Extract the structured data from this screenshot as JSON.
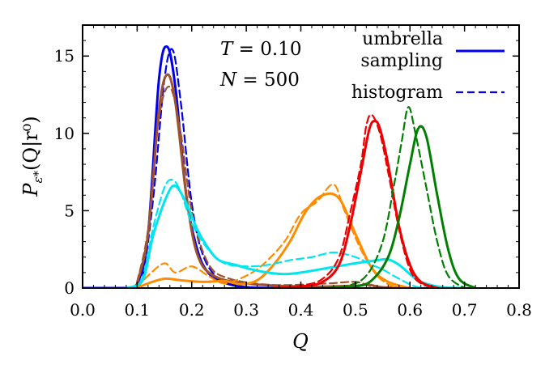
{
  "chart_data": {
    "type": "line",
    "title": "",
    "xlabel": "Q",
    "ylabel": "P_ε*(Q|r⁰)",
    "ylabel_parts": {
      "main": "P",
      "sub": "ε*",
      "arg": "(Q|r⁰)"
    },
    "xlim": [
      0.0,
      0.8
    ],
    "ylim": [
      0,
      17
    ],
    "xticks": [
      "0.0",
      "0.1",
      "0.2",
      "0.3",
      "0.4",
      "0.5",
      "0.6",
      "0.7",
      "0.8"
    ],
    "yticks": [
      "0",
      "5",
      "10",
      "15"
    ],
    "xtick_values": [
      0.0,
      0.1,
      0.2,
      0.3,
      0.4,
      0.5,
      0.6,
      0.7,
      0.8
    ],
    "ytick_values": [
      0,
      5,
      10,
      15
    ],
    "grid": false,
    "annotations": [
      {
        "text": "T = 0.10",
        "math_var": "T",
        "rest": " = 0.10"
      },
      {
        "text": "N = 500",
        "math_var": "N",
        "rest": " = 500"
      }
    ],
    "legend": {
      "placement": "top-right",
      "entries": [
        {
          "label_line1": "umbrella",
          "label_line2": "sampling",
          "style": "solid",
          "color": "#0000ee"
        },
        {
          "label_line1": "histogram",
          "style": "dashed",
          "color": "#0000ee"
        }
      ]
    },
    "series": [
      {
        "name": "blue umbrella sampling",
        "color": "#0000ee",
        "style": "solid",
        "width": 3,
        "points": [
          [
            0,
            0
          ],
          [
            0.08,
            0
          ],
          [
            0.1,
            0.25
          ],
          [
            0.12,
            3.5
          ],
          [
            0.14,
            13.5
          ],
          [
            0.155,
            15.6
          ],
          [
            0.17,
            13
          ],
          [
            0.19,
            6
          ],
          [
            0.21,
            2.5
          ],
          [
            0.23,
            1.0
          ],
          [
            0.26,
            0.35
          ],
          [
            0.3,
            0.05
          ],
          [
            0.35,
            0
          ]
        ]
      },
      {
        "name": "blue histogram",
        "color": "#0000ee",
        "style": "dashed",
        "width": 2.2,
        "points": [
          [
            0,
            0
          ],
          [
            0.09,
            0
          ],
          [
            0.11,
            0.8
          ],
          [
            0.13,
            6
          ],
          [
            0.15,
            13.5
          ],
          [
            0.165,
            15.4
          ],
          [
            0.18,
            12
          ],
          [
            0.2,
            5.5
          ],
          [
            0.22,
            2.2
          ],
          [
            0.25,
            0.6
          ],
          [
            0.3,
            0.05
          ],
          [
            0.35,
            0
          ]
        ]
      },
      {
        "name": "brown umbrella sampling",
        "color": "#a0522d",
        "style": "solid",
        "width": 3,
        "points": [
          [
            0.1,
            0.3
          ],
          [
            0.12,
            3.5
          ],
          [
            0.14,
            11.5
          ],
          [
            0.155,
            13.8
          ],
          [
            0.17,
            12
          ],
          [
            0.19,
            6
          ],
          [
            0.21,
            2.2
          ],
          [
            0.24,
            0.8
          ],
          [
            0.3,
            0.3
          ],
          [
            0.4,
            0.1
          ],
          [
            0.5,
            0.15
          ],
          [
            0.52,
            0.25
          ],
          [
            0.55,
            0.05
          ],
          [
            0.6,
            0
          ]
        ]
      },
      {
        "name": "brown histogram",
        "color": "#a0522d",
        "style": "dashed",
        "width": 2.2,
        "points": [
          [
            0.1,
            0.4
          ],
          [
            0.12,
            3.8
          ],
          [
            0.14,
            11
          ],
          [
            0.16,
            13
          ],
          [
            0.18,
            10
          ],
          [
            0.2,
            5
          ],
          [
            0.23,
            1.6
          ],
          [
            0.27,
            0.6
          ],
          [
            0.35,
            0.2
          ],
          [
            0.45,
            0.3
          ],
          [
            0.5,
            0.4
          ],
          [
            0.53,
            0.1
          ],
          [
            0.56,
            0
          ]
        ]
      },
      {
        "name": "orange umbrella sampling",
        "color": "#ff8c00",
        "style": "solid",
        "width": 3,
        "points": [
          [
            0.1,
            0
          ],
          [
            0.12,
            0.3
          ],
          [
            0.15,
            0.6
          ],
          [
            0.18,
            0.5
          ],
          [
            0.22,
            0.4
          ],
          [
            0.26,
            0.45
          ],
          [
            0.29,
            0.25
          ],
          [
            0.32,
            0.5
          ],
          [
            0.35,
            1.5
          ],
          [
            0.38,
            3
          ],
          [
            0.41,
            5
          ],
          [
            0.44,
            6.0
          ],
          [
            0.47,
            5.8
          ],
          [
            0.5,
            3.5
          ],
          [
            0.53,
            1.3
          ],
          [
            0.56,
            0.4
          ],
          [
            0.6,
            0
          ]
        ]
      },
      {
        "name": "orange histogram",
        "color": "#ff8c00",
        "style": "dashed",
        "width": 2.2,
        "points": [
          [
            0.1,
            0
          ],
          [
            0.12,
            0.8
          ],
          [
            0.15,
            1.6
          ],
          [
            0.17,
            1.0
          ],
          [
            0.2,
            1.4
          ],
          [
            0.23,
            0.8
          ],
          [
            0.26,
            0.3
          ],
          [
            0.3,
            0.8
          ],
          [
            0.33,
            1.5
          ],
          [
            0.37,
            3
          ],
          [
            0.4,
            4.8
          ],
          [
            0.43,
            5.6
          ],
          [
            0.46,
            6.7
          ],
          [
            0.48,
            5
          ],
          [
            0.51,
            2.5
          ],
          [
            0.54,
            0.8
          ],
          [
            0.57,
            0.1
          ],
          [
            0.6,
            0
          ]
        ]
      },
      {
        "name": "cyan umbrella sampling",
        "color": "#00e5ee",
        "style": "solid",
        "width": 3,
        "points": [
          [
            0.08,
            0
          ],
          [
            0.11,
            0.5
          ],
          [
            0.13,
            3.5
          ],
          [
            0.155,
            6.0
          ],
          [
            0.17,
            6.6
          ],
          [
            0.19,
            5.5
          ],
          [
            0.21,
            3.8
          ],
          [
            0.23,
            2.6
          ],
          [
            0.25,
            1.8
          ],
          [
            0.28,
            1.5
          ],
          [
            0.31,
            1.2
          ],
          [
            0.34,
            1.0
          ],
          [
            0.37,
            0.9
          ],
          [
            0.4,
            1.0
          ],
          [
            0.45,
            1.3
          ],
          [
            0.5,
            1.6
          ],
          [
            0.54,
            1.8
          ],
          [
            0.56,
            1.85
          ],
          [
            0.58,
            1.5
          ],
          [
            0.6,
            0.9
          ],
          [
            0.62,
            0.4
          ],
          [
            0.66,
            0.05
          ],
          [
            0.7,
            0
          ]
        ]
      },
      {
        "name": "cyan histogram",
        "color": "#00e5ee",
        "style": "dashed",
        "width": 2.2,
        "points": [
          [
            0.09,
            0
          ],
          [
            0.11,
            0.7
          ],
          [
            0.13,
            4
          ],
          [
            0.15,
            6.5
          ],
          [
            0.165,
            7.0
          ],
          [
            0.18,
            6.2
          ],
          [
            0.2,
            4.2
          ],
          [
            0.23,
            2.5
          ],
          [
            0.26,
            1.6
          ],
          [
            0.3,
            1.4
          ],
          [
            0.34,
            1.5
          ],
          [
            0.38,
            1.8
          ],
          [
            0.42,
            2.0
          ],
          [
            0.46,
            2.3
          ],
          [
            0.5,
            2.0
          ],
          [
            0.53,
            1.5
          ],
          [
            0.55,
            1.2
          ],
          [
            0.58,
            0.6
          ],
          [
            0.61,
            0.1
          ],
          [
            0.64,
            0
          ]
        ]
      },
      {
        "name": "red umbrella sampling",
        "color": "#ee0000",
        "style": "solid",
        "width": 3,
        "points": [
          [
            0.35,
            0
          ],
          [
            0.4,
            0.1
          ],
          [
            0.44,
            0.4
          ],
          [
            0.47,
            1.5
          ],
          [
            0.49,
            4
          ],
          [
            0.51,
            7.5
          ],
          [
            0.525,
            10.2
          ],
          [
            0.535,
            10.8
          ],
          [
            0.545,
            10.3
          ],
          [
            0.56,
            8
          ],
          [
            0.58,
            4
          ],
          [
            0.6,
            1.5
          ],
          [
            0.62,
            0.4
          ],
          [
            0.65,
            0
          ]
        ]
      },
      {
        "name": "red histogram",
        "color": "#ee0000",
        "style": "dashed",
        "width": 2.2,
        "points": [
          [
            0.35,
            0
          ],
          [
            0.4,
            0.15
          ],
          [
            0.44,
            0.6
          ],
          [
            0.47,
            2
          ],
          [
            0.49,
            4.8
          ],
          [
            0.51,
            8
          ],
          [
            0.52,
            10.5
          ],
          [
            0.53,
            11.2
          ],
          [
            0.545,
            10
          ],
          [
            0.56,
            7.5
          ],
          [
            0.58,
            3.8
          ],
          [
            0.6,
            1.2
          ],
          [
            0.62,
            0.3
          ],
          [
            0.65,
            0
          ]
        ]
      },
      {
        "name": "green umbrella sampling",
        "color": "#008000",
        "style": "solid",
        "width": 3,
        "points": [
          [
            0.45,
            0
          ],
          [
            0.5,
            0.1
          ],
          [
            0.53,
            0.5
          ],
          [
            0.56,
            2
          ],
          [
            0.58,
            4.5
          ],
          [
            0.6,
            8
          ],
          [
            0.615,
            10.3
          ],
          [
            0.63,
            9.8
          ],
          [
            0.65,
            6
          ],
          [
            0.67,
            2.5
          ],
          [
            0.69,
            0.6
          ],
          [
            0.72,
            0
          ]
        ]
      },
      {
        "name": "green histogram",
        "color": "#008000",
        "style": "dashed",
        "width": 2.2,
        "points": [
          [
            0.43,
            0
          ],
          [
            0.48,
            0.1
          ],
          [
            0.52,
            0.8
          ],
          [
            0.55,
            3
          ],
          [
            0.57,
            6.5
          ],
          [
            0.585,
            9.5
          ],
          [
            0.597,
            11.7
          ],
          [
            0.61,
            10
          ],
          [
            0.63,
            6.5
          ],
          [
            0.65,
            3
          ],
          [
            0.67,
            0.8
          ],
          [
            0.7,
            0
          ]
        ]
      }
    ]
  }
}
